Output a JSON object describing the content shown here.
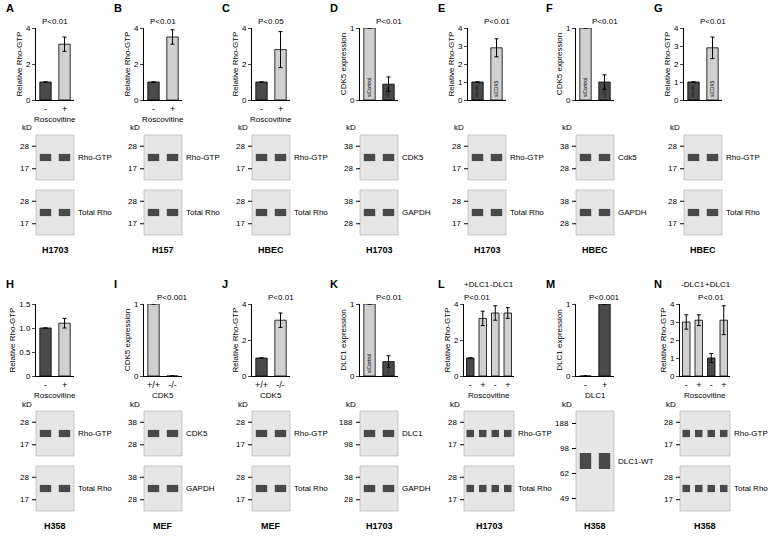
{
  "chart_data": [
    {
      "type": "bar",
      "title": "A",
      "y_label": "Relative Rho-GTP",
      "x_label": "Roscovitine",
      "categories": [
        "-",
        "+"
      ],
      "values": [
        1,
        3.1
      ],
      "errors": [
        0,
        0.4
      ],
      "colors": [
        "#4a4a4a",
        "#d0d0d0"
      ],
      "ylim": [
        0,
        4
      ],
      "yticks": [
        0,
        2,
        4
      ],
      "p_values": [
        {
          "text": "P<0.01",
          "bars": [
            0,
            1
          ]
        }
      ],
      "kd_label": "kD",
      "blots": [
        {
          "label": "Rho-GTP",
          "kd": [
            28,
            17
          ]
        },
        {
          "label": "Total Rho",
          "kd": [
            28,
            17
          ]
        }
      ],
      "cell_line": "H1703"
    },
    {
      "type": "bar",
      "title": "B",
      "y_label": "Relative Rho-GTP",
      "x_label": "Roscovitine",
      "categories": [
        "-",
        "+"
      ],
      "values": [
        1,
        3.5
      ],
      "errors": [
        0,
        0.4
      ],
      "colors": [
        "#4a4a4a",
        "#d0d0d0"
      ],
      "ylim": [
        0,
        4
      ],
      "yticks": [
        0,
        2,
        4
      ],
      "p_values": [
        {
          "text": "P<0.01",
          "bars": [
            0,
            1
          ]
        }
      ],
      "kd_label": "kD",
      "blots": [
        {
          "label": "Rho-GTP",
          "kd": [
            28,
            17
          ]
        },
        {
          "label": "Total Rho",
          "kd": [
            28,
            17
          ]
        }
      ],
      "cell_line": "H157"
    },
    {
      "type": "bar",
      "title": "C",
      "y_label": "Relative Rho-GTP",
      "x_label": "Roscovitine",
      "categories": [
        "-",
        "+"
      ],
      "values": [
        1,
        2.8
      ],
      "errors": [
        0,
        1.0
      ],
      "colors": [
        "#4a4a4a",
        "#d0d0d0"
      ],
      "ylim": [
        0,
        4
      ],
      "yticks": [
        0,
        2,
        4
      ],
      "p_values": [
        {
          "text": "P<0.05",
          "bars": [
            0,
            1
          ]
        }
      ],
      "kd_label": "kD",
      "blots": [
        {
          "label": "Rho-GTP",
          "kd": [
            28,
            17
          ]
        },
        {
          "label": "Total Rho",
          "kd": [
            28,
            17
          ]
        }
      ],
      "cell_line": "HBEC"
    },
    {
      "type": "bar",
      "title": "D",
      "y_label": "CDK5 expression",
      "categories": [
        "siControl",
        "siCDK5"
      ],
      "values": [
        1,
        0.22
      ],
      "errors": [
        0,
        0.1
      ],
      "colors": [
        "#d0d0d0",
        "#4a4a4a"
      ],
      "ylim": [
        0,
        1
      ],
      "yticks": [
        0,
        1
      ],
      "tick_labels": "y",
      "p_values": [
        {
          "text": "P<0.01",
          "bars": [
            1
          ]
        }
      ],
      "kd_label": "kD",
      "blots": [
        {
          "label": "CDK5",
          "kd": [
            38,
            28
          ]
        },
        {
          "label": "GAPDH",
          "kd": [
            38,
            28
          ]
        }
      ],
      "cell_line": "H1703"
    },
    {
      "type": "bar",
      "title": "E",
      "y_label": "Relative Rho-GTP",
      "categories": [
        "siControl",
        "siCDK5"
      ],
      "values": [
        1,
        2.9
      ],
      "errors": [
        0,
        0.5
      ],
      "colors": [
        "#4a4a4a",
        "#d0d0d0"
      ],
      "ylim": [
        0,
        4
      ],
      "yticks": [
        0,
        1,
        2,
        3,
        4
      ],
      "tick_labels": "y",
      "p_values": [
        {
          "text": "P<0.01",
          "bars": [
            1
          ]
        }
      ],
      "kd_label": "kD",
      "blots": [
        {
          "label": "Rho-GTP",
          "kd": [
            28,
            17
          ]
        },
        {
          "label": "Total Rho",
          "kd": [
            28,
            17
          ]
        }
      ],
      "cell_line": "H1703"
    },
    {
      "type": "bar",
      "title": "F",
      "y_label": "CDK5 expression",
      "categories": [
        "siControl",
        "siCDK5"
      ],
      "values": [
        1,
        0.25
      ],
      "errors": [
        0,
        0.1
      ],
      "colors": [
        "#d0d0d0",
        "#4a4a4a"
      ],
      "ylim": [
        0,
        1
      ],
      "yticks": [
        0,
        1
      ],
      "tick_labels": "y",
      "p_values": [
        {
          "text": "P<0.01",
          "bars": [
            1
          ]
        }
      ],
      "kd_label": "kD",
      "blots": [
        {
          "label": "Cdk5",
          "kd": [
            38,
            28
          ]
        },
        {
          "label": "GAPDH",
          "kd": [
            38,
            28
          ]
        }
      ],
      "cell_line": "HBEC"
    },
    {
      "type": "bar",
      "title": "G",
      "y_label": "Relative Rho-GTP",
      "categories": [
        "siControl",
        "siCDK5"
      ],
      "values": [
        1,
        2.9
      ],
      "errors": [
        0,
        0.6
      ],
      "colors": [
        "#4a4a4a",
        "#d0d0d0"
      ],
      "ylim": [
        0,
        4
      ],
      "yticks": [
        0,
        1,
        2,
        3,
        4
      ],
      "tick_labels": "y",
      "p_values": [
        {
          "text": "P<0.01",
          "bars": [
            1
          ]
        }
      ],
      "kd_label": "kD",
      "blots": [
        {
          "label": "Rho-GTP",
          "kd": [
            28,
            17
          ]
        },
        {
          "label": "Total Rho",
          "kd": [
            28,
            17
          ]
        }
      ],
      "cell_line": "HBEC"
    },
    {
      "type": "bar",
      "title": "H",
      "y_label": "Relative Rho-GTP",
      "x_label": "Roscovitine",
      "categories": [
        "-",
        "+"
      ],
      "values": [
        1,
        1.1
      ],
      "errors": [
        0,
        0.1
      ],
      "colors": [
        "#4a4a4a",
        "#d0d0d0"
      ],
      "ylim": [
        0,
        1.5
      ],
      "yticks": [
        0,
        0.5,
        {
          "value": 1,
          "label": "1.0"
        },
        1.5
      ],
      "kd_label": "kD",
      "blots": [
        {
          "label": "Rho-GTP",
          "kd": [
            28,
            17
          ]
        },
        {
          "label": "Total Rho",
          "kd": [
            28,
            17
          ]
        }
      ],
      "cell_line": "H358"
    },
    {
      "type": "bar",
      "title": "I",
      "y_label": "CDK5 expression",
      "x_label": "CDK5",
      "categories": [
        "+/+",
        "-/-"
      ],
      "values": [
        1,
        0
      ],
      "errors": [
        0,
        0
      ],
      "colors": [
        "#d0d0d0",
        "#4a4a4a"
      ],
      "ylim": [
        0,
        1
      ],
      "yticks": [
        0,
        1
      ],
      "p_values": [
        {
          "text": "P<0.001",
          "bars": [
            1
          ]
        }
      ],
      "kd_label": "kD",
      "blots": [
        {
          "label": "CDK5",
          "kd": [
            38,
            28
          ]
        },
        {
          "label": "GAPDH",
          "kd": [
            38,
            28
          ]
        }
      ],
      "cell_line": "MEF"
    },
    {
      "type": "bar",
      "title": "J",
      "y_label": "Relative Rho-GTP",
      "x_label": "CDK5",
      "categories": [
        "+/+",
        "-/-"
      ],
      "values": [
        1,
        3.1
      ],
      "errors": [
        0,
        0.4
      ],
      "colors": [
        "#4a4a4a",
        "#d0d0d0"
      ],
      "ylim": [
        0,
        4
      ],
      "yticks": [
        0,
        2,
        4
      ],
      "p_values": [
        {
          "text": "P<0.01",
          "bars": [
            1
          ]
        }
      ],
      "kd_label": "kD",
      "blots": [
        {
          "label": "Rho-GTP",
          "kd": [
            28,
            17
          ]
        },
        {
          "label": "Total Rho",
          "kd": [
            28,
            17
          ]
        }
      ],
      "cell_line": "MEF"
    },
    {
      "type": "bar",
      "title": "K",
      "y_label": "DLC1 expression",
      "categories": [
        "siControl",
        "siDLC1"
      ],
      "values": [
        1,
        0.2
      ],
      "errors": [
        0,
        0.08
      ],
      "colors": [
        "#d0d0d0",
        "#4a4a4a"
      ],
      "ylim": [
        0,
        1
      ],
      "yticks": [
        0,
        1
      ],
      "tick_labels": "y",
      "p_values": [
        {
          "text": "P<0.01",
          "bars": [
            1
          ]
        }
      ],
      "kd_label": "kD",
      "blots": [
        {
          "label": "DLC1",
          "kd": [
            188,
            98
          ]
        },
        {
          "label": "GAPDH",
          "kd": [
            38,
            28
          ]
        }
      ],
      "cell_line": "H1703"
    },
    {
      "type": "bar",
      "title": "L",
      "y_label": "Relative Rho-GTP",
      "x_label": "Roscovitine",
      "categories": [
        "-",
        "+",
        "-",
        "+"
      ],
      "values": [
        1,
        3.2,
        3.5,
        3.5
      ],
      "errors": [
        0,
        0.4,
        0.4,
        0.3
      ],
      "colors": [
        "#4a4a4a",
        "#d0d0d0",
        "#d0d0d0",
        "#d0d0d0"
      ],
      "ylim": [
        0,
        4
      ],
      "yticks": [
        0,
        2,
        4
      ],
      "groups": [
        {
          "label": "+DLC1",
          "bars": [
            0,
            1
          ]
        },
        {
          "label": "-DLC1",
          "bars": [
            2,
            3
          ]
        }
      ],
      "p_values": [
        {
          "text": "P<0.01",
          "bars": [
            0,
            1
          ]
        }
      ],
      "kd_label": "kD",
      "blots": [
        {
          "label": "Rho-GTP",
          "kd": [
            28,
            17
          ]
        },
        {
          "label": "Total Rho",
          "kd": [
            28,
            17
          ]
        }
      ],
      "cell_line": "H1703"
    },
    {
      "type": "bar",
      "title": "M",
      "y_label": "DLC1 expression",
      "x_label": "DLC1",
      "categories": [
        "-",
        "+"
      ],
      "values": [
        0,
        1
      ],
      "errors": [
        0,
        0
      ],
      "colors": [
        "#d0d0d0",
        "#4a4a4a"
      ],
      "ylim": [
        0,
        1
      ],
      "yticks": [
        0,
        1
      ],
      "p_values": [
        {
          "text": "P<0.001",
          "bars": [
            1
          ]
        }
      ],
      "kd_label": "kD",
      "blots": [
        {
          "label": "DLC1-WT",
          "kd": [
            188,
            98,
            62,
            49
          ]
        }
      ],
      "cell_line": "H358"
    },
    {
      "type": "bar",
      "title": "N",
      "y_label": "Relative Rho-GTP",
      "x_label": "Roscovitine",
      "categories": [
        "-",
        "+",
        "-",
        "+"
      ],
      "values": [
        3.0,
        3.1,
        1.0,
        3.1
      ],
      "errors": [
        0.4,
        0.3,
        0.25,
        0.8
      ],
      "colors": [
        "#d0d0d0",
        "#d0d0d0",
        "#4a4a4a",
        "#d0d0d0"
      ],
      "ylim": [
        0,
        4
      ],
      "yticks": [
        0,
        1,
        2,
        3,
        4
      ],
      "groups": [
        {
          "label": "-DLC1",
          "bars": [
            0,
            1
          ]
        },
        {
          "label": "+DLC1",
          "bars": [
            2,
            3
          ]
        }
      ],
      "p_values": [
        {
          "text": "P<0.01",
          "bars": [
            2
          ]
        }
      ],
      "kd_label": "kD",
      "blots": [
        {
          "label": "Rho-GTP",
          "kd": [
            28,
            17
          ]
        },
        {
          "label": "Total Rho",
          "kd": [
            28,
            17
          ]
        }
      ],
      "cell_line": "H358"
    }
  ]
}
